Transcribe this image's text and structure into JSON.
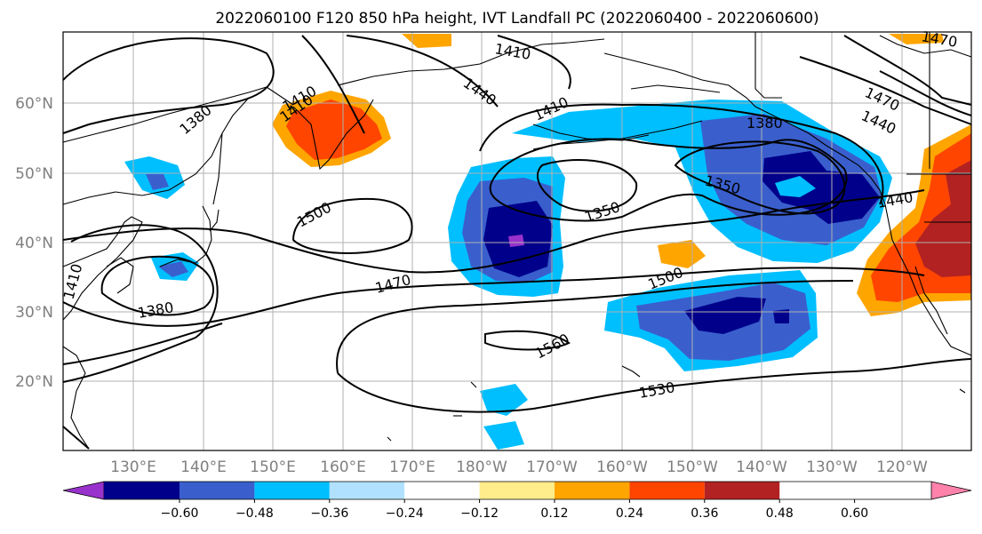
{
  "title": "2022060100 F120 850 hPa height, IVT Landfall PC (2022060400 - 2022060600)",
  "lat_labels": [
    "60°N",
    "50°N",
    "40°N",
    "30°N",
    "20°N"
  ],
  "lon_labels": [
    "130°E",
    "140°E",
    "150°E",
    "160°E",
    "170°E",
    "180°W",
    "170°W",
    "160°W",
    "150°W",
    "140°W",
    "130°W",
    "120°W"
  ],
  "colorbar": {
    "ticks": [
      "−0.60",
      "−0.48",
      "−0.36",
      "−0.24",
      "−0.12",
      "0.12",
      "0.24",
      "0.36",
      "0.48",
      "0.60"
    ],
    "colors": [
      "#9932cc",
      "#00008b",
      "#3a5fcd",
      "#00bfff",
      "#b0e2ff",
      "#ffffff",
      "#ffec8b",
      "#ffa500",
      "#ff4500",
      "#b22222",
      "#ff82ab"
    ]
  },
  "contour_labels": [
    "1410",
    "1440",
    "1410",
    "1380",
    "1350",
    "1350",
    "1380",
    "1410",
    "1470",
    "1500",
    "1560",
    "1530",
    "1410",
    "1380",
    "1500",
    "1470",
    "1440",
    "1470",
    "1440",
    "1410"
  ],
  "colors": {
    "land": "#000000",
    "grid": "#b0b0b0",
    "contour": "#000000"
  }
}
